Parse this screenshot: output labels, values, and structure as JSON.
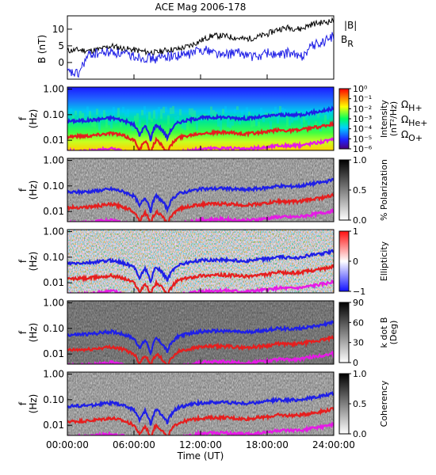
{
  "title": "ACE Mag 2006-178",
  "x_axis": {
    "label": "Time (UT)",
    "ticks": [
      "00:00:00",
      "06:00:00",
      "12:00:00",
      "18:00:00",
      "24:00:00"
    ],
    "tick_hours": [
      0,
      6,
      12,
      18,
      24
    ]
  },
  "legend_top": {
    "b_total": "|B|",
    "b_r": "B",
    "b_r_sub": "R"
  },
  "gyro_labels": [
    {
      "text": "Ω",
      "sub": "H+",
      "color": "#1f1fe6"
    },
    {
      "text": "Ω",
      "sub": "He+",
      "color": "#e61e1e"
    },
    {
      "text": "Ω",
      "sub": "O+",
      "color": "#e619e6"
    }
  ],
  "colors": {
    "b_total": "#000000",
    "b_r": "#1f1fe6",
    "h_plus": "#1f1fe6",
    "he_plus": "#e61e1e",
    "o_plus": "#e619e6"
  },
  "panels": [
    {
      "id": "intensity",
      "ylabel_main": "f",
      "ylabel_unit": "(Hz)",
      "cbar_label": "Intensity",
      "cbar_unit": "(nT²/Hz)",
      "cbar_ticks": [
        "10⁰",
        "10⁻¹",
        "10⁻²",
        "10⁻³",
        "10⁻⁴",
        "10⁻⁵",
        "10⁻⁶"
      ],
      "cmap": "rainbow"
    },
    {
      "id": "polarization",
      "ylabel_main": "f",
      "ylabel_unit": "(Hz)",
      "cbar_label": "% Polarization",
      "cbar_unit": "",
      "cbar_ticks": [
        "1.0",
        "0.5",
        "0.0"
      ],
      "cmap": "gray"
    },
    {
      "id": "ellipticity",
      "ylabel_main": "f",
      "ylabel_unit": "(Hz)",
      "cbar_label": "Ellipticity",
      "cbar_unit": "",
      "cbar_ticks": [
        "1",
        "0",
        "−1"
      ],
      "cmap": "bwr"
    },
    {
      "id": "kdotb",
      "ylabel_main": "f",
      "ylabel_unit": "(Hz)",
      "cbar_label": "k dot B",
      "cbar_unit": "(Deg)",
      "cbar_ticks": [
        "90",
        "60",
        "30",
        "0"
      ],
      "cmap": "gray"
    },
    {
      "id": "coherency",
      "ylabel_main": "f",
      "ylabel_unit": "(Hz)",
      "cbar_label": "Coherency",
      "cbar_unit": "",
      "cbar_ticks": [
        "1.0",
        "0.5",
        "0.0"
      ],
      "cmap": "gray"
    }
  ],
  "chart_data": {
    "type": "line",
    "title": "ACE Mag 2006-178",
    "xlabel": "Time (UT)",
    "xlim_hours": [
      0,
      24
    ],
    "top_panel": {
      "ylabel": "B (nT)",
      "ylim": [
        -5,
        14
      ],
      "yticks": [
        0,
        5,
        10
      ],
      "series": [
        {
          "name": "|B|",
          "x": [
            0,
            1,
            2,
            3,
            4,
            5,
            6,
            7,
            8,
            9,
            10,
            11,
            12,
            13,
            14,
            15,
            16,
            17,
            18,
            19,
            20,
            21,
            22,
            23,
            24
          ],
          "y": [
            3.5,
            3.8,
            3.5,
            4.0,
            5.0,
            4.2,
            3.8,
            3.2,
            3.0,
            3.8,
            4.0,
            5.0,
            6.5,
            8.0,
            8.0,
            7.5,
            7.0,
            7.5,
            8.5,
            10.0,
            10.5,
            10.0,
            11.5,
            12.0,
            12.5
          ]
        },
        {
          "name": "B_R",
          "x": [
            0,
            1,
            1.5,
            2,
            3,
            4,
            5,
            6,
            7,
            8,
            9,
            10,
            11,
            12,
            13,
            14,
            15,
            16,
            17,
            18,
            19,
            20,
            21,
            22,
            23,
            24
          ],
          "y": [
            -3.0,
            -3.5,
            0.0,
            2.5,
            2.8,
            3.2,
            2.5,
            2.0,
            1.5,
            1.0,
            2.0,
            2.0,
            2.5,
            4.0,
            3.5,
            2.0,
            3.0,
            2.5,
            1.5,
            3.0,
            2.0,
            3.0,
            1.5,
            5.0,
            6.0,
            8.0
          ]
        }
      ]
    },
    "freq_panels": {
      "ylabel": "f (Hz)",
      "yscale": "log",
      "ylim": [
        0.004,
        1.2
      ],
      "yticks": [
        0.01,
        0.1,
        1.0
      ],
      "ytick_labels": [
        "0.01",
        "0.10",
        "1.00"
      ],
      "gyro_series": [
        {
          "name": "ΩH+",
          "x": [
            0,
            2,
            4,
            5,
            6,
            6.5,
            7,
            7.5,
            8,
            9,
            10,
            12,
            14,
            15,
            16,
            18,
            19,
            20,
            21,
            22,
            23,
            24
          ],
          "y": [
            0.055,
            0.06,
            0.075,
            0.06,
            0.04,
            0.015,
            0.035,
            0.01,
            0.04,
            0.012,
            0.05,
            0.075,
            0.08,
            0.075,
            0.07,
            0.085,
            0.1,
            0.095,
            0.1,
            0.12,
            0.14,
            0.17
          ]
        },
        {
          "name": "ΩHe+",
          "x": [
            0,
            2,
            4,
            5,
            6,
            6.5,
            7,
            7.5,
            8,
            9,
            10,
            12,
            14,
            15,
            16,
            18,
            19,
            20,
            21,
            22,
            23,
            24
          ],
          "y": [
            0.014,
            0.015,
            0.019,
            0.015,
            0.01,
            0.004,
            0.009,
            0.003,
            0.01,
            0.003,
            0.0125,
            0.019,
            0.02,
            0.019,
            0.0175,
            0.021,
            0.025,
            0.024,
            0.025,
            0.03,
            0.035,
            0.043
          ]
        },
        {
          "name": "ΩO+",
          "x": [
            0,
            2,
            4,
            5,
            6,
            7,
            8,
            9,
            10,
            12,
            14,
            15,
            16,
            18,
            19,
            20,
            21,
            22,
            23,
            24
          ],
          "y": [
            0.0035,
            0.0037,
            0.0047,
            0.0038,
            0.0026,
            0.0022,
            0.0025,
            0.003,
            0.0032,
            0.0047,
            0.005,
            0.0047,
            0.0044,
            0.0053,
            0.0062,
            0.006,
            0.0063,
            0.0075,
            0.0088,
            0.0106
          ]
        }
      ]
    }
  }
}
